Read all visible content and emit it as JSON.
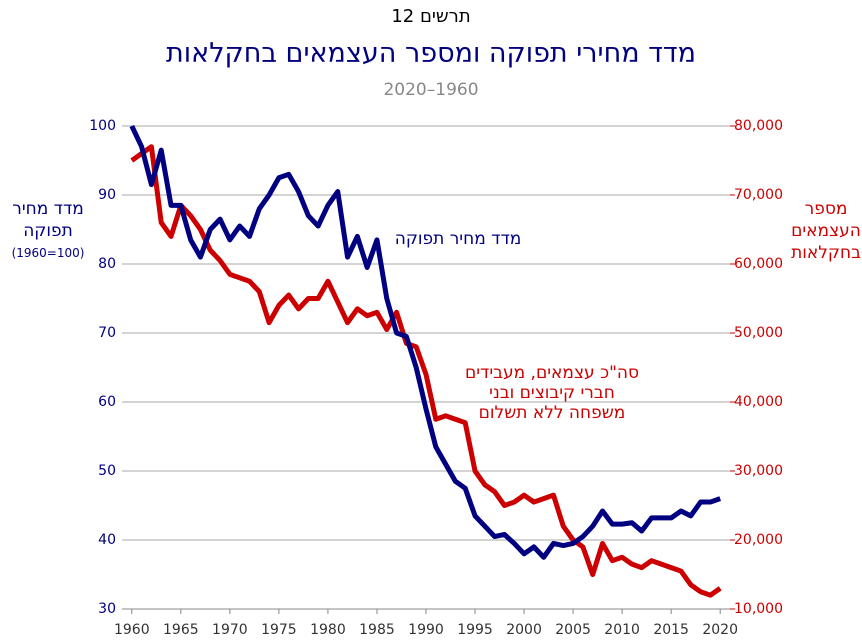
{
  "chart_data": {
    "type": "line",
    "label": "תרשים 12",
    "title": "מדד מחירי תפוקה ומספר העצמאים בחקלאות",
    "subtitle": "1960–2020",
    "y_label": [
      "מדד מחיר",
      "תפוקה",
      "(1960=100)"
    ],
    "y2_label": [
      "מספר",
      "העצמאים",
      "בחקלאות"
    ],
    "x": [
      1960,
      1961,
      1962,
      1963,
      1964,
      1965,
      1966,
      1967,
      1968,
      1969,
      1970,
      1971,
      1972,
      1973,
      1974,
      1975,
      1976,
      1977,
      1978,
      1979,
      1980,
      1981,
      1982,
      1983,
      1984,
      1985,
      1986,
      1987,
      1988,
      1989,
      1990,
      1991,
      1992,
      1993,
      1994,
      1995,
      1996,
      1997,
      1998,
      1999,
      2000,
      2001,
      2002,
      2003,
      2004,
      2005,
      2006,
      2007,
      2008,
      2009,
      2010,
      2011,
      2012,
      2013,
      2014,
      2015,
      2016,
      2017,
      2018,
      2019,
      2020
    ],
    "series": [
      {
        "name": "מדד מחיר תפוקה",
        "color": "#000080",
        "axis": "y",
        "values": [
          100,
          97,
          91.5,
          96.5,
          88.5,
          88.5,
          83.5,
          81,
          85,
          86.5,
          83.5,
          85.5,
          84,
          88,
          90,
          92.5,
          93,
          90.5,
          87,
          85.5,
          88.5,
          90.5,
          81,
          84,
          79.5,
          83.5,
          75,
          70,
          69.5,
          65,
          59,
          53.5,
          51,
          48.5,
          47.5,
          43.5,
          42,
          40.5,
          40.8,
          39.5,
          38,
          39,
          37.5,
          39.5,
          39.2,
          39.5,
          40.5,
          42,
          44.2,
          42.3,
          42.3,
          42.5,
          41.3,
          43.2,
          43.2,
          43.2,
          44.2,
          43.5,
          45.5,
          45.5,
          46
        ]
      },
      {
        "name": [
          "סה\"כ עצמאים, מעבידים",
          "חברי קיבוצים ובני",
          "משפחה ללא תשלום"
        ],
        "color": "#cc0000",
        "axis": "y2",
        "values": [
          75000,
          76000,
          77000,
          66000,
          64000,
          68500,
          67000,
          65000,
          62000,
          60500,
          58500,
          58000,
          57500,
          56000,
          51500,
          54000,
          55500,
          53500,
          55000,
          55000,
          57500,
          54500,
          51500,
          53500,
          52500,
          53000,
          50500,
          53000,
          48500,
          48000,
          44000,
          37500,
          38000,
          37500,
          37000,
          30000,
          28000,
          27000,
          25000,
          25500,
          26500,
          25500,
          26000,
          26500,
          22000,
          20000,
          19000,
          15000,
          19500,
          17000,
          17500,
          16500,
          16000,
          17000,
          16500,
          16000,
          15500,
          13500,
          12500,
          12000,
          13000
        ]
      }
    ],
    "xlim": [
      1959,
      2021
    ],
    "xticks": [
      1960,
      1965,
      1970,
      1975,
      1980,
      1985,
      1990,
      1995,
      2000,
      2005,
      2010,
      2015,
      2020
    ],
    "ylim": [
      30,
      100
    ],
    "yticks": [
      30,
      40,
      50,
      60,
      70,
      80,
      90,
      100
    ],
    "y2lim": [
      10000,
      80000
    ],
    "y2ticks": [
      {
        "value": 10000,
        "label": "10,000"
      },
      {
        "value": 20000,
        "label": "20,000"
      },
      {
        "value": 30000,
        "label": "30,000"
      },
      {
        "value": 40000,
        "label": "40,000"
      },
      {
        "value": 50000,
        "label": "50,000"
      },
      {
        "value": 60000,
        "label": "60,000"
      },
      {
        "value": 70000,
        "label": "70,000"
      },
      {
        "value": 80000,
        "label": "80,000"
      }
    ],
    "grid": true
  }
}
